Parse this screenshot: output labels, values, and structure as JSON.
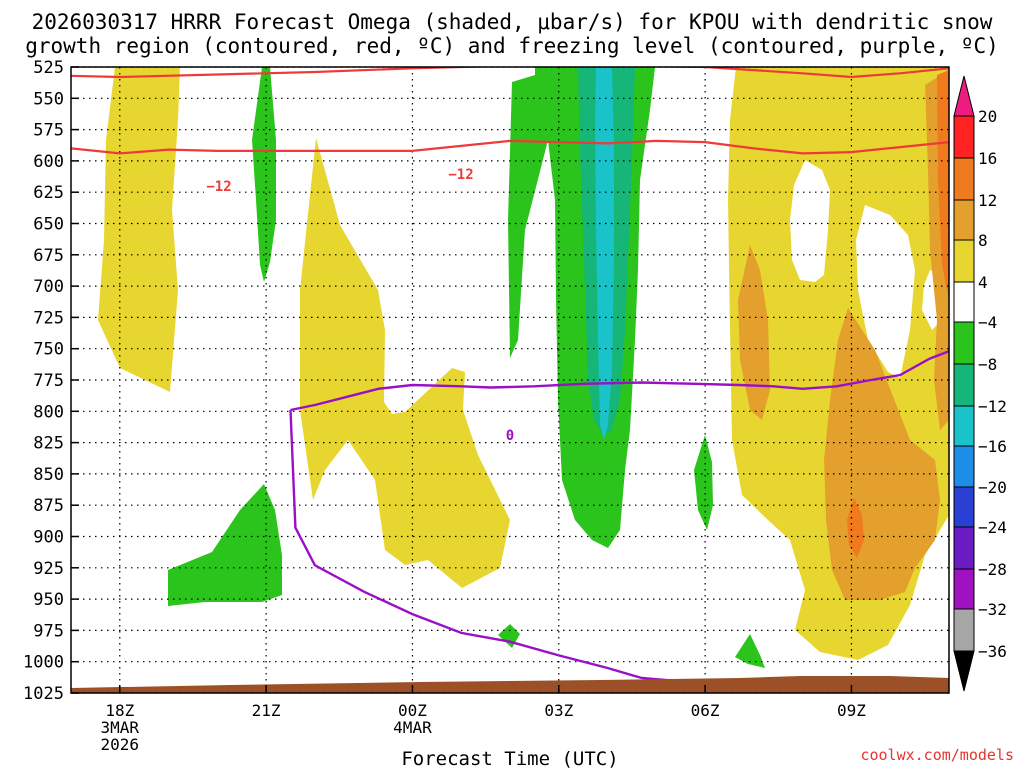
{
  "chart_data": {
    "type": "time-height contour",
    "title_line1": "2026030317 HRRR Forecast Omega (shaded, μbar/s) for KPOU with dendritic snow",
    "title_line2": "growth region (contoured, red, ºC) and freezing level (contoured, purple, ºC)",
    "xlabel": "Forecast Time (UTC)",
    "credit": "coolwx.com/models",
    "y_ticks": [
      "525",
      "550",
      "575",
      "600",
      "625",
      "650",
      "675",
      "700",
      "725",
      "750",
      "775",
      "800",
      "825",
      "850",
      "875",
      "900",
      "925",
      "950",
      "975",
      "1000",
      "1025"
    ],
    "x_ticks": [
      {
        "hour": 18,
        "lines": [
          "18Z",
          "3MAR",
          "2026"
        ]
      },
      {
        "hour": 21,
        "lines": [
          "21Z"
        ]
      },
      {
        "hour": 24,
        "lines": [
          "00Z",
          "4MAR"
        ]
      },
      {
        "hour": 27,
        "lines": [
          "03Z"
        ]
      },
      {
        "hour": 30,
        "lines": [
          "06Z"
        ]
      },
      {
        "hour": 33,
        "lines": [
          "09Z"
        ]
      }
    ],
    "x_range_hours": [
      17,
      35
    ],
    "y_range_hPa": [
      525,
      1025
    ],
    "colorbar": {
      "labels": [
        "20",
        "16",
        "12",
        "8",
        "4",
        "−4",
        "−8",
        "−12",
        "−16",
        "−20",
        "−24",
        "−28",
        "−32",
        "−36"
      ],
      "colors": [
        "#ff2222",
        "#f07a1e",
        "#e3a02c",
        "#e8d630",
        "#ffffff",
        "#2bc41c",
        "#16b578",
        "#1ac2c9",
        "#1c8ee8",
        "#2a3fd4",
        "#6a1bc4",
        "#9e12c0",
        "#a6a6a6"
      ],
      "top_arrow_color": "#ee1b80",
      "bottom_arrow_color": "#000000"
    },
    "contour_labels": {
      "dendritic_low": "−12",
      "dendritic_high": "−12",
      "freezing": "0"
    },
    "colors": {
      "weak_ascent": "#e8d630",
      "moderate_ascent": "#e3a02c",
      "strong_ascent": "#f07a1e",
      "weak_descent": "#2bc41c",
      "moderate_descent": "#16b578",
      "strong_descent": "#1ac2c9",
      "dendritic_contour": "#ee3a3a",
      "freezing_contour": "#9a10c6",
      "ground": "#9c5027"
    },
    "dgz_contours": [
      {
        "name": "upper",
        "points": [
          [
            17,
            532
          ],
          [
            18,
            533
          ],
          [
            20,
            531
          ],
          [
            22,
            529
          ],
          [
            24,
            526
          ],
          [
            26,
            524
          ],
          [
            28,
            524
          ],
          [
            30,
            525
          ],
          [
            32,
            530
          ],
          [
            33,
            533
          ],
          [
            34,
            530
          ],
          [
            35,
            526
          ]
        ]
      },
      {
        "name": "lower",
        "points": [
          [
            17,
            590
          ],
          [
            18,
            594
          ],
          [
            19,
            591
          ],
          [
            20,
            592
          ],
          [
            22,
            592
          ],
          [
            24,
            592
          ],
          [
            25,
            588
          ],
          [
            26,
            584
          ],
          [
            27,
            585
          ],
          [
            28,
            586
          ],
          [
            29,
            584
          ],
          [
            30,
            585
          ],
          [
            31,
            590
          ],
          [
            32,
            594
          ],
          [
            33,
            593
          ],
          [
            34,
            589
          ],
          [
            35,
            585
          ]
        ]
      }
    ],
    "freezing_contour": [
      [
        21.5,
        799
      ],
      [
        22,
        795
      ],
      [
        22.7,
        788
      ],
      [
        23.3,
        782
      ],
      [
        24,
        779
      ],
      [
        25,
        780
      ],
      [
        25.6,
        781
      ],
      [
        26.5,
        780
      ],
      [
        27.5,
        778
      ],
      [
        28.7,
        777
      ],
      [
        29.8,
        778
      ],
      [
        30.7,
        779
      ],
      [
        31.4,
        780
      ],
      [
        32,
        782
      ],
      [
        32.7,
        780
      ],
      [
        33.4,
        775
      ],
      [
        34,
        771
      ],
      [
        34.6,
        758
      ],
      [
        35,
        752
      ],
      [
        35.1,
        750
      ]
    ],
    "freezing_contour_bottom": [
      [
        21.5,
        799
      ],
      [
        21.6,
        893
      ],
      [
        22,
        923
      ],
      [
        23,
        944
      ],
      [
        24,
        962
      ],
      [
        25,
        977
      ],
      [
        26,
        984
      ],
      [
        27,
        995
      ],
      [
        28,
        1005
      ],
      [
        28.7,
        1013
      ],
      [
        29.6,
        1016
      ],
      [
        30.1,
        1018
      ]
    ]
  }
}
